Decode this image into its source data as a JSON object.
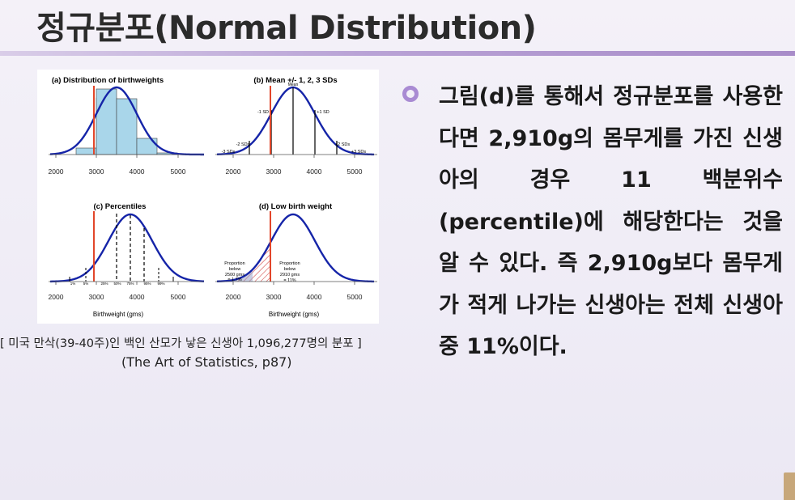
{
  "slide": {
    "title": "정규분포(Normal Distribution)",
    "accent_color": "#a98bd3"
  },
  "figure": {
    "panels": [
      {
        "title": "(a) Distribution of birthweights",
        "x_ticks": [
          "2000",
          "3000",
          "4000",
          "5000"
        ],
        "x_label": ""
      },
      {
        "title": "(b) Mean +/- 1, 2, 3 SDs",
        "x_ticks": [
          "2000",
          "3000",
          "4000",
          "5000"
        ],
        "x_label": "",
        "annotations": [
          "Mean",
          "-1 SD",
          "+1 SD",
          "-2 SDs",
          "+2 SDs",
          "-3 SDs",
          "+3 SDs"
        ]
      },
      {
        "title": "(c) Percentiles",
        "x_ticks": [
          "2000",
          "3000",
          "4000",
          "5000"
        ],
        "x_label": "Birthweight (gms)",
        "percentile_labels": [
          "1%",
          "5%",
          "25%",
          "50%",
          "75%",
          "95%",
          "99%"
        ]
      },
      {
        "title": "(d) Low birth weight",
        "x_ticks": [
          "2000",
          "3000",
          "4000",
          "5000"
        ],
        "x_label": "Birthweight (gms)",
        "annotation_left": [
          "Proportion",
          "below",
          "2500 gms",
          "= 1.7%"
        ],
        "annotation_right": [
          "Proportion",
          "below",
          "2910 gms",
          "= 11%"
        ]
      }
    ]
  },
  "caption": {
    "line1": "[ 미국 만삭(39-40주)인 백인 산모가 낳은 신생아 1,096,277명의 분포 ]",
    "line2": "(The Art of Statistics, p87)"
  },
  "body": {
    "paragraph": "그림(d)를 통해서 정규분포를 사용한다면 2,910g의 몸무게를 가진 신생아의 경우 11 백분위수(percentile)에 해당한다는 것을 알 수 있다. 즉 2,910g보다 몸무게가 적게 나가는 신생아는 전체 신생아 중 11%이다."
  }
}
